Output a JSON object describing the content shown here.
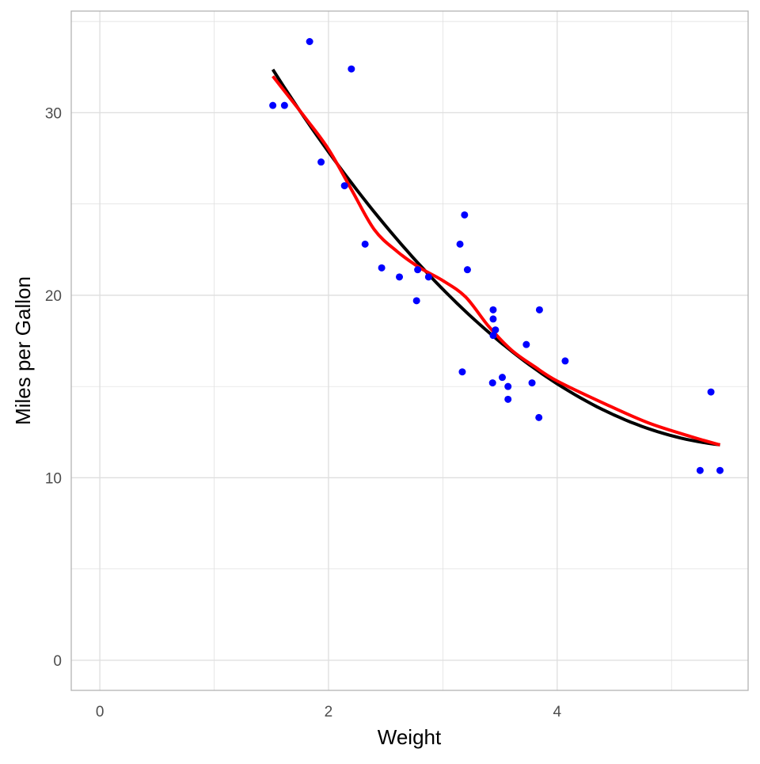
{
  "chart_data": {
    "type": "scatter",
    "title": "",
    "xlabel": "Weight",
    "ylabel": "Miles per Gallon",
    "xlim": [
      -0.25,
      5.67
    ],
    "ylim": [
      -1.65,
      35.57
    ],
    "x_ticks": [
      0,
      2,
      4
    ],
    "y_ticks": [
      0,
      10,
      20,
      30
    ],
    "x_tick_labels": [
      "0",
      "2",
      "4"
    ],
    "y_tick_labels": [
      "0",
      "10",
      "20",
      "30"
    ],
    "grid": true,
    "legend": "none",
    "colors": {
      "points": "#0000FF",
      "quadratic_fit": "#000000",
      "loess_fit": "#FF0000",
      "grid": "#DEDEDE",
      "border": "#B3B3B3"
    },
    "points": [
      [
        2.62,
        21.0
      ],
      [
        2.875,
        21.0
      ],
      [
        2.32,
        22.8
      ],
      [
        3.215,
        21.4
      ],
      [
        3.44,
        18.7
      ],
      [
        3.46,
        18.1
      ],
      [
        3.57,
        14.3
      ],
      [
        3.19,
        24.4
      ],
      [
        3.15,
        22.8
      ],
      [
        3.44,
        19.2
      ],
      [
        3.44,
        17.8
      ],
      [
        4.07,
        16.4
      ],
      [
        3.73,
        17.3
      ],
      [
        3.78,
        15.2
      ],
      [
        5.25,
        10.4
      ],
      [
        5.424,
        10.4
      ],
      [
        5.345,
        14.7
      ],
      [
        2.2,
        32.4
      ],
      [
        1.615,
        30.4
      ],
      [
        1.835,
        33.9
      ],
      [
        2.465,
        21.5
      ],
      [
        3.52,
        15.5
      ],
      [
        3.435,
        15.2
      ],
      [
        3.84,
        13.3
      ],
      [
        3.845,
        19.2
      ],
      [
        1.935,
        27.3
      ],
      [
        2.14,
        26.0
      ],
      [
        1.513,
        30.4
      ],
      [
        3.17,
        15.8
      ],
      [
        2.77,
        19.7
      ],
      [
        3.57,
        15.0
      ],
      [
        2.78,
        21.4
      ]
    ],
    "series": [
      {
        "type": "quadratic",
        "coefficients": [
          49.93,
          -13.38,
          1.171
        ],
        "x_range": [
          1.513,
          5.424
        ]
      },
      {
        "type": "loess",
        "points": [
          [
            1.513,
            32.0
          ],
          [
            1.8,
            29.7
          ],
          [
            2.0,
            28.0
          ],
          [
            2.2,
            25.8
          ],
          [
            2.4,
            23.6
          ],
          [
            2.6,
            22.4
          ],
          [
            2.8,
            21.5
          ],
          [
            3.0,
            20.8
          ],
          [
            3.2,
            19.9
          ],
          [
            3.4,
            18.3
          ],
          [
            3.6,
            17.0
          ],
          [
            3.8,
            16.1
          ],
          [
            4.0,
            15.3
          ],
          [
            4.4,
            14.1
          ],
          [
            4.8,
            13.0
          ],
          [
            5.2,
            12.2
          ],
          [
            5.424,
            11.8
          ]
        ]
      }
    ]
  }
}
